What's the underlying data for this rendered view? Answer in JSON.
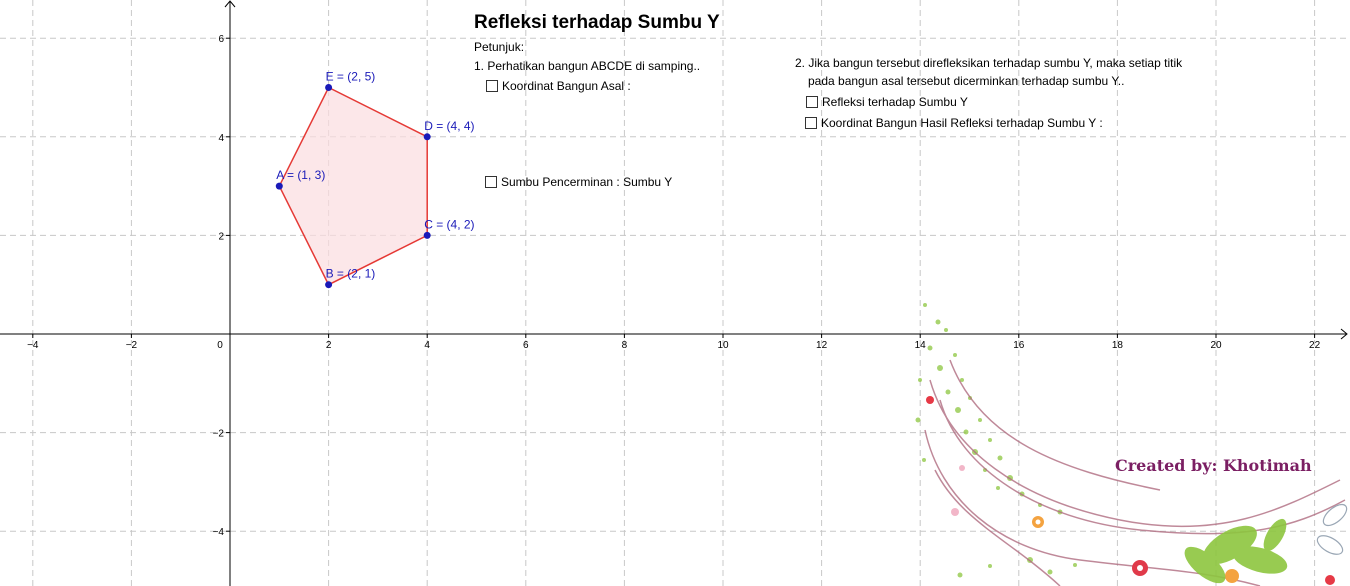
{
  "title": "Refleksi terhadap Sumbu Y",
  "instructions": {
    "header": "Petunjuk:",
    "step1": "1. Perhatikan bangun ABCDE di samping..",
    "step2_line1": "2. Jika bangun tersebut direfleksikan terhadap sumbu Y, maka setiap titik",
    "step2_line2": "pada bangun asal tersebut dicerminkan terhadap sumbu Y.."
  },
  "checkboxes": {
    "koordinat_asal": {
      "label": "Koordinat Bangun Asal :",
      "checked": false
    },
    "sumbu_pencerminan": {
      "label": "Sumbu Pencerminan : Sumbu Y",
      "checked": false
    },
    "refleksi": {
      "label": "Refleksi terhadap Sumbu Y",
      "checked": false
    },
    "koordinat_hasil": {
      "label": "Koordinat Bangun Hasil Refleksi terhadap Sumbu Y :",
      "checked": false
    }
  },
  "credit": "Created by: Khotimah",
  "graph": {
    "x_ticks": [
      "−4",
      "−2",
      "0",
      "2",
      "4",
      "6",
      "8",
      "10",
      "12",
      "14",
      "16",
      "18",
      "20",
      "22"
    ],
    "y_ticks": [
      "−4",
      "−2",
      "2",
      "4",
      "6"
    ],
    "grid": true,
    "grid_style": "dashed",
    "polygon": {
      "stroke_color": "#e53935",
      "fill_color": "#fbdde0",
      "point_color": "#1a1ab8",
      "points": [
        {
          "name": "A",
          "x": 1,
          "y": 3,
          "label": "A = (1, 3)"
        },
        {
          "name": "B",
          "x": 2,
          "y": 1,
          "label": "B = (2, 1)"
        },
        {
          "name": "C",
          "x": 4,
          "y": 2,
          "label": "C = (4, 2)"
        },
        {
          "name": "D",
          "x": 4,
          "y": 4,
          "label": "D = (4, 4)"
        },
        {
          "name": "E",
          "x": 2,
          "y": 5,
          "label": "E = (2, 5)"
        }
      ]
    }
  }
}
